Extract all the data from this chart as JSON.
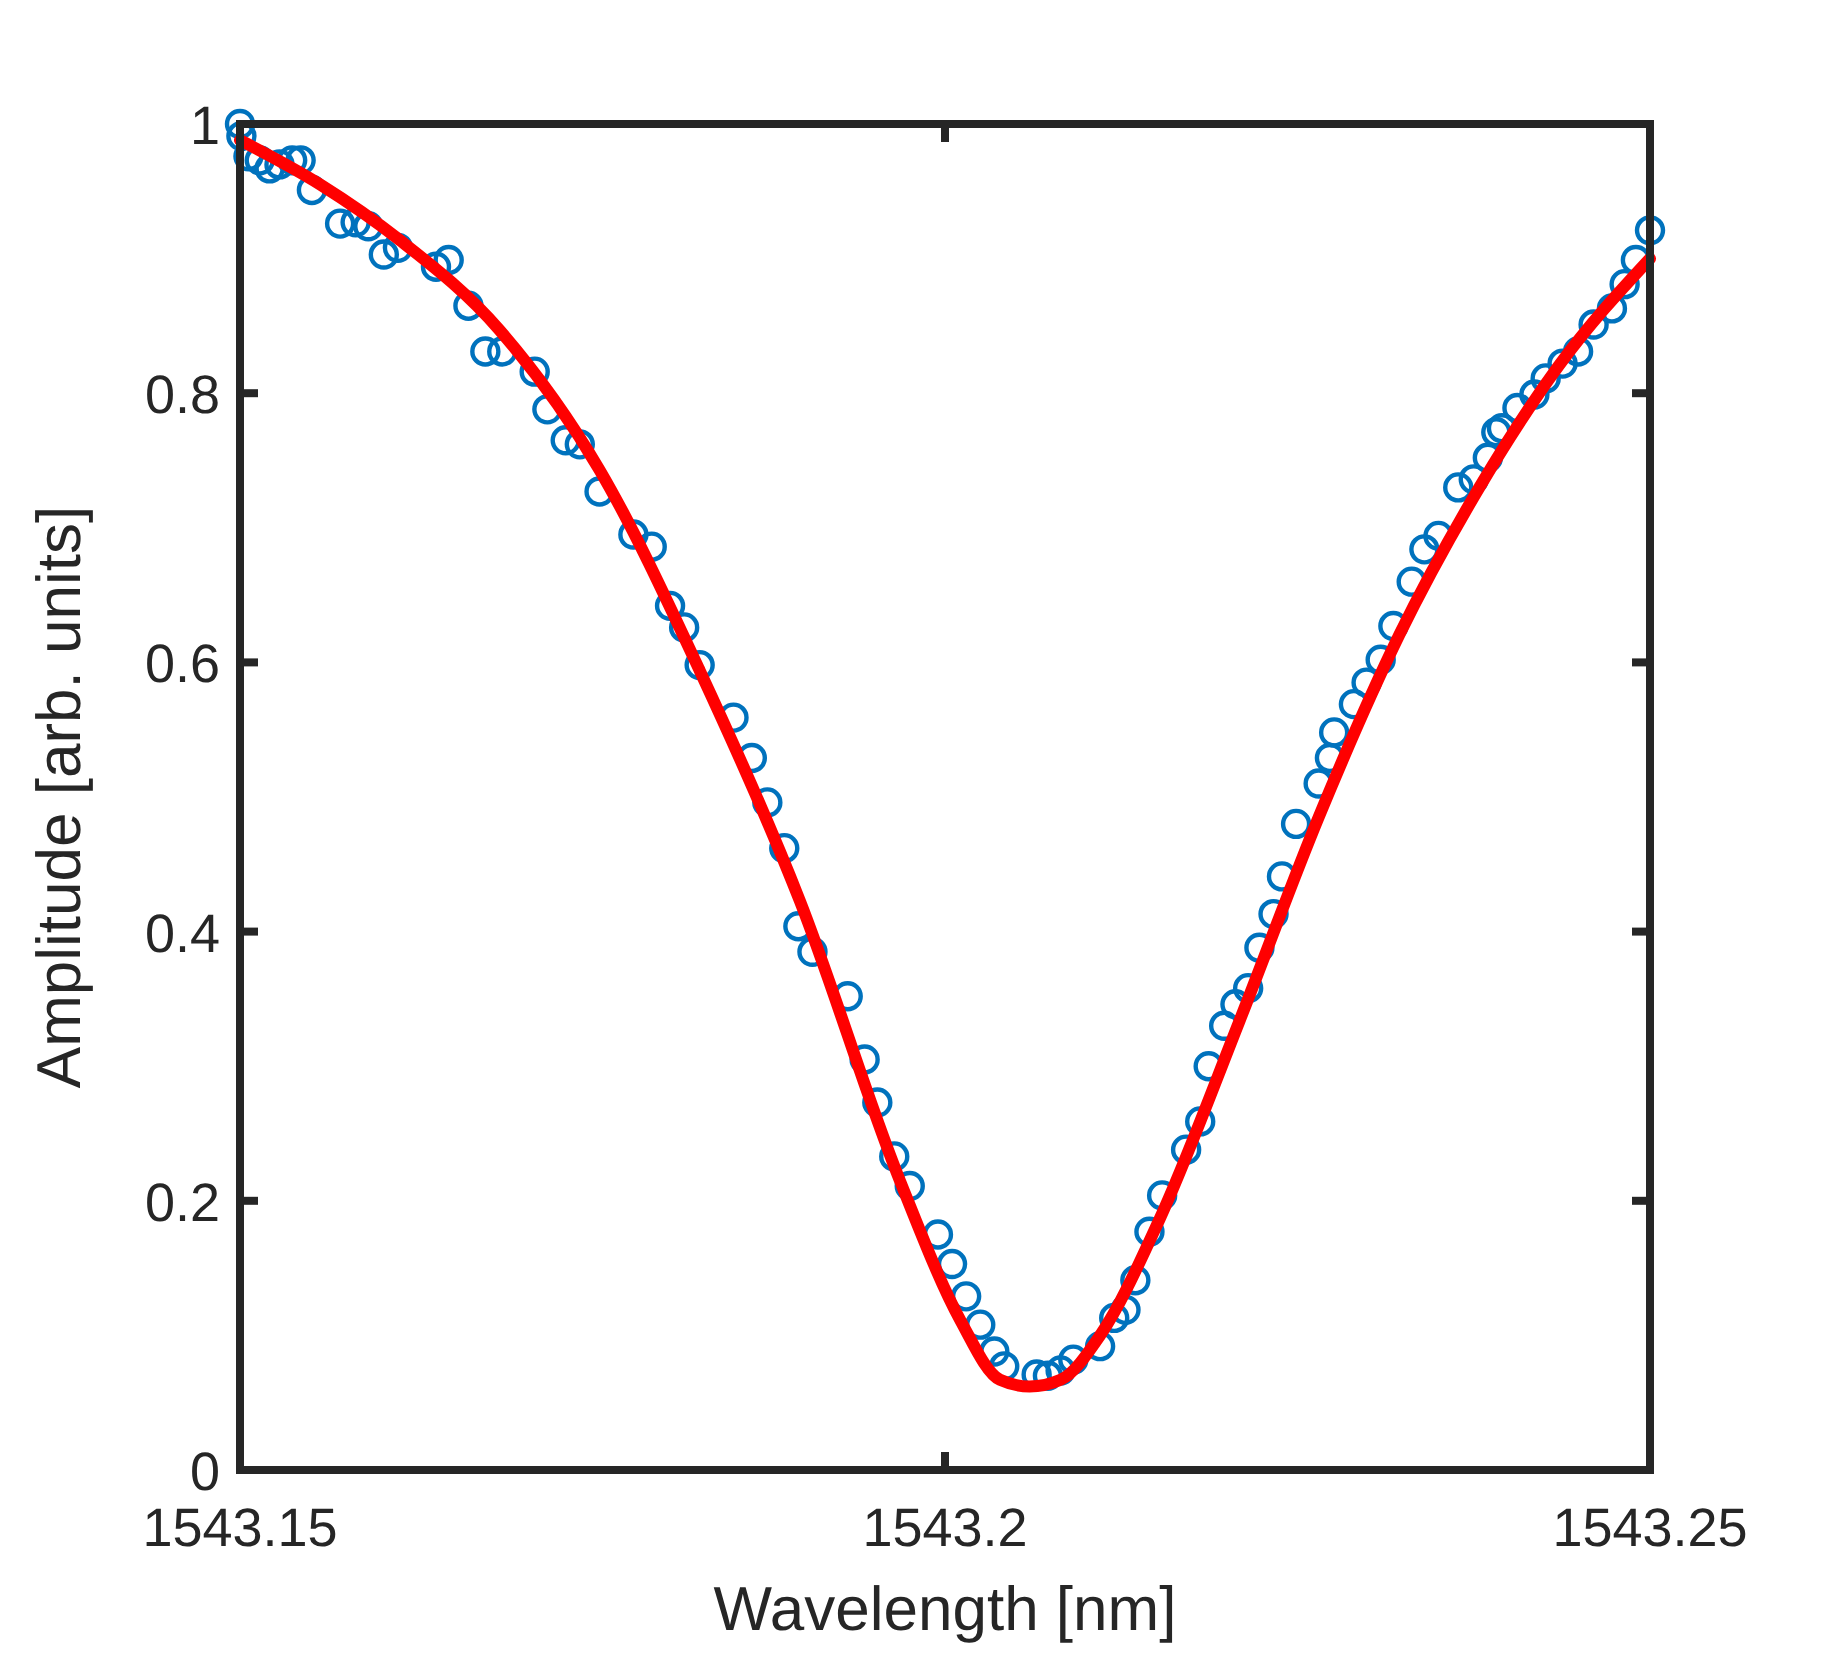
{
  "chart_data": {
    "type": "scatter",
    "xlabel": "Wavelength [nm]",
    "ylabel": "Amplitude [arb. units]",
    "xlim": [
      1543.15,
      1543.25
    ],
    "xticks": [
      1543.15,
      1543.2,
      1543.25
    ],
    "ylim": [
      0,
      1
    ],
    "yticks": [
      0,
      0.2,
      0.4,
      0.6,
      0.8,
      1
    ],
    "grid": false,
    "series": [
      {
        "marker": "circle",
        "color": "#0072bd",
        "x": [
          1543.15,
          1543.1501,
          1543.1506,
          1543.1514,
          1543.1521,
          1543.1528,
          1543.1537,
          1543.1543,
          1543.1551,
          1543.1571,
          1543.1582,
          1543.1591,
          1543.1602,
          1543.1612,
          1543.1639,
          1543.1648,
          1543.1662,
          1543.1674,
          1543.1686,
          1543.1709,
          1543.1718,
          1543.1731,
          1543.1741,
          1543.1755,
          1543.1779,
          1543.1792,
          1543.1805,
          1543.1815,
          1543.1826,
          1543.185,
          1543.1863,
          1543.1874,
          1543.1886,
          1543.1896,
          1543.1906,
          1543.1931,
          1543.1943,
          1543.1952,
          1543.1964,
          1543.1975,
          1543.1995,
          1543.2005,
          1543.2015,
          1543.2025,
          1543.2035,
          1543.2042,
          1543.2065,
          1543.2073,
          1543.2082,
          1543.2091,
          1543.211,
          1543.212,
          1543.2128,
          1543.2135,
          1543.2145,
          1543.2154,
          1543.2171,
          1543.2181,
          1543.2187,
          1543.2198,
          1543.2206,
          1543.2215,
          1543.2223,
          1543.2233,
          1543.2239,
          1543.2249,
          1543.2265,
          1543.2273,
          1543.2276,
          1543.229,
          1543.2299,
          1543.2309,
          1543.2318,
          1543.2331,
          1543.234,
          1543.235,
          1543.2364,
          1543.2375,
          1543.2385,
          1543.2391,
          1543.2395,
          1543.2406,
          1543.2418,
          1543.2426,
          1543.2438,
          1543.2449,
          1543.246,
          1543.2473,
          1543.2482,
          1543.249,
          1543.25
        ],
        "values": [
          1.0,
          0.991,
          0.976,
          0.973,
          0.967,
          0.97,
          0.973,
          0.973,
          0.951,
          0.926,
          0.927,
          0.924,
          0.903,
          0.908,
          0.894,
          0.899,
          0.865,
          0.831,
          0.831,
          0.816,
          0.788,
          0.765,
          0.762,
          0.727,
          0.695,
          0.686,
          0.642,
          0.626,
          0.598,
          0.559,
          0.529,
          0.496,
          0.462,
          0.404,
          0.385,
          0.352,
          0.305,
          0.273,
          0.233,
          0.211,
          0.175,
          0.153,
          0.129,
          0.108,
          0.088,
          0.077,
          0.071,
          0.07,
          0.074,
          0.082,
          0.092,
          0.113,
          0.119,
          0.141,
          0.177,
          0.204,
          0.238,
          0.259,
          0.3,
          0.33,
          0.346,
          0.358,
          0.388,
          0.413,
          0.441,
          0.48,
          0.51,
          0.529,
          0.548,
          0.569,
          0.585,
          0.602,
          0.627,
          0.66,
          0.684,
          0.694,
          0.73,
          0.736,
          0.752,
          0.771,
          0.774,
          0.789,
          0.799,
          0.811,
          0.822,
          0.831,
          0.851,
          0.863,
          0.881,
          0.899,
          0.921
        ]
      },
      {
        "type": "line",
        "line_style": "solid",
        "color": "#ff0000",
        "x": [
          1543.15,
          1543.1557,
          1543.1613,
          1543.1684,
          1543.1755,
          1543.1826,
          1543.1897,
          1543.1968,
          1543.2011,
          1543.2039,
          1543.206,
          1543.2082,
          1543.211,
          1543.2152,
          1543.2209,
          1543.2265,
          1543.2322,
          1543.2379,
          1543.2435,
          1543.25
        ],
        "values": [
          0.988,
          0.955,
          0.914,
          0.847,
          0.743,
          0.594,
          0.423,
          0.215,
          0.111,
          0.067,
          0.062,
          0.067,
          0.1,
          0.186,
          0.334,
          0.485,
          0.62,
          0.73,
          0.82,
          0.9
        ]
      }
    ]
  }
}
